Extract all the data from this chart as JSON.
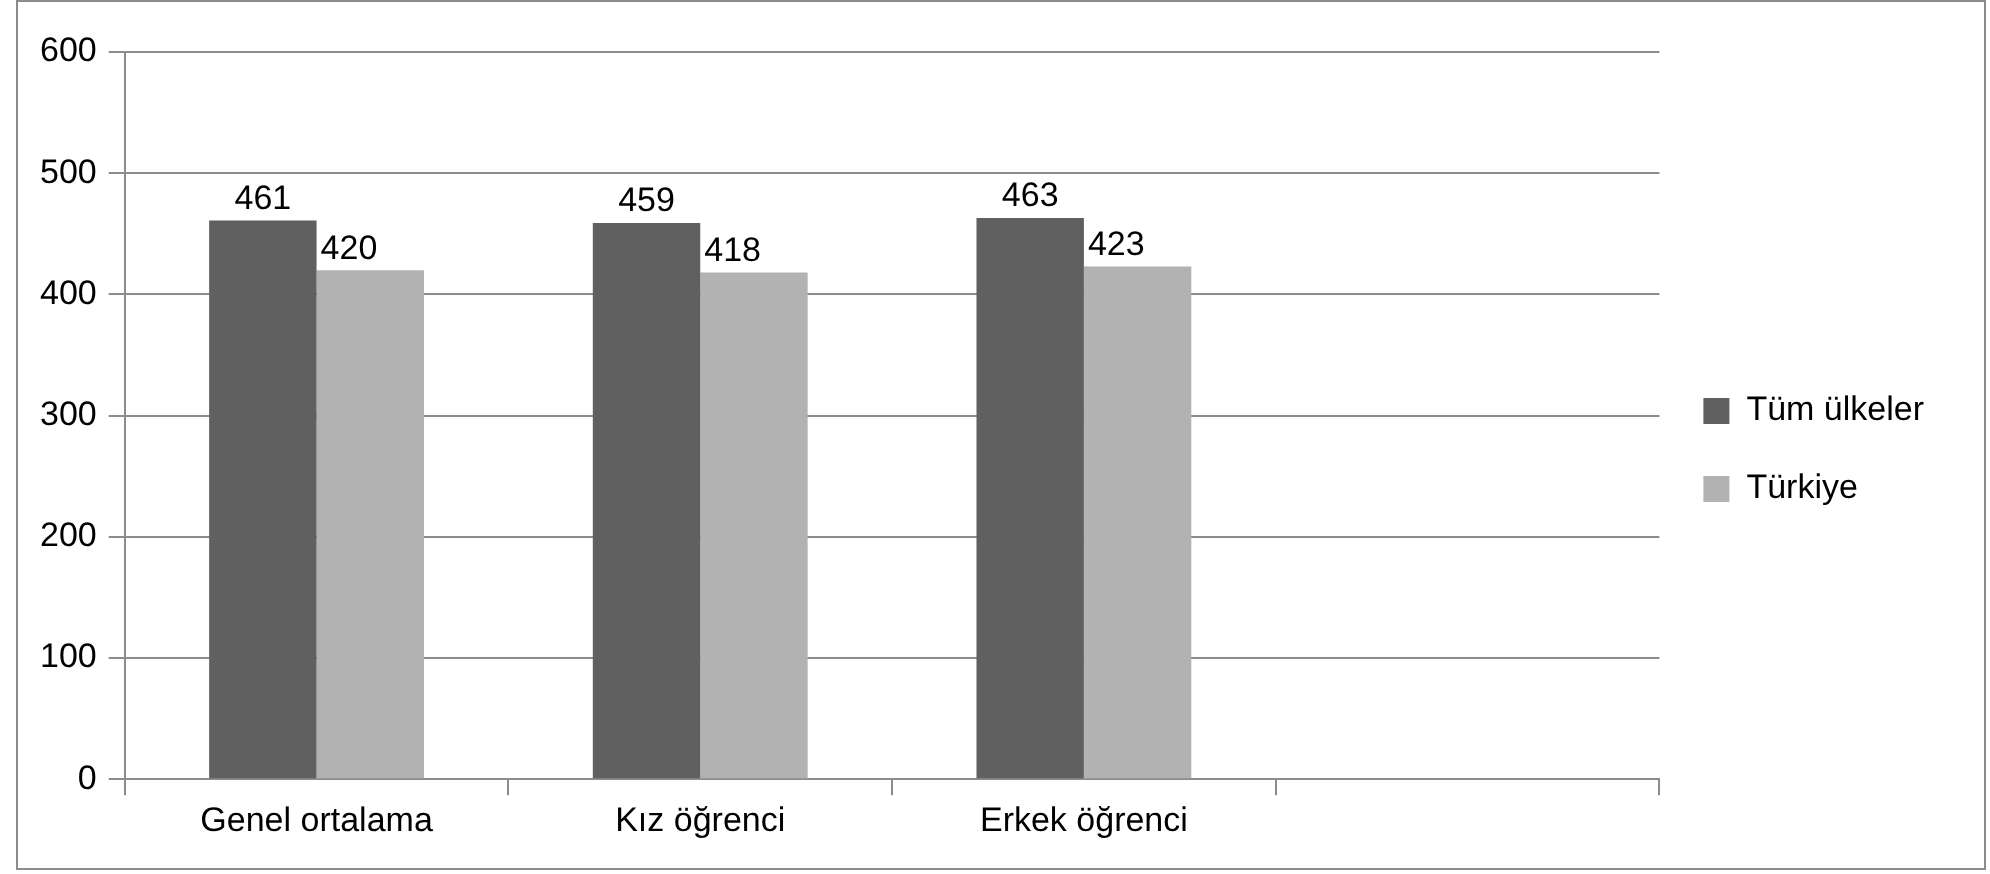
{
  "chart_data": {
    "type": "bar",
    "categories": [
      "Genel ortalama",
      "Kız öğrenci",
      "Erkek öğrenci",
      null
    ],
    "series": [
      {
        "name": "Tüm ülkeler",
        "color": "#606060",
        "values": [
          461,
          459,
          463,
          null
        ]
      },
      {
        "name": "Türkiye",
        "color": "#b2b2b2",
        "values": [
          420,
          418,
          423,
          null
        ]
      }
    ],
    "ylim": [
      0,
      600
    ],
    "yticks": [
      0,
      100,
      200,
      300,
      400,
      500,
      600
    ],
    "grid": "y",
    "legend": "right",
    "data_labels": true
  }
}
